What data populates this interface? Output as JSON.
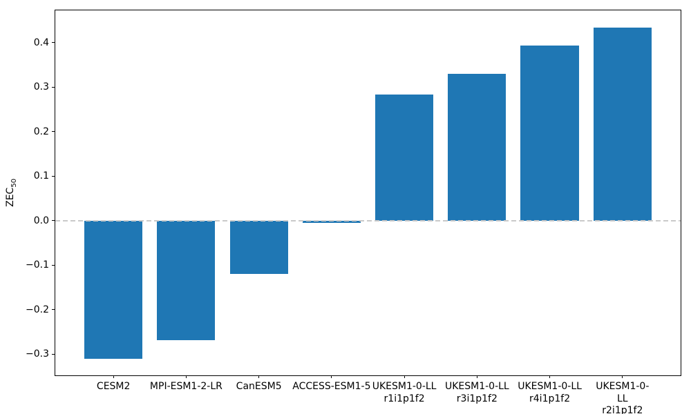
{
  "figure": {
    "background": "#ffffff",
    "ylabel_main": "ZEC",
    "ylabel_sub": "50"
  },
  "chart_data": {
    "type": "bar",
    "title": "",
    "xlabel": "",
    "ylabel": "ZEC_50",
    "bar_color": "#1f77b4",
    "categories": [
      "CESM2",
      "MPI-ESM1-2-LR",
      "CanESM5",
      "ACCESS-ESM1-5",
      "UKESM1-0-LL\nr1i1p1f2",
      "UKESM1-0-LL\nr3i1p1f2",
      "UKESM1-0-LL\nr4i1p1f2",
      "UKESM1-0-LL\nr2i1p1f2"
    ],
    "values": [
      -0.31,
      -0.268,
      -0.119,
      -0.005,
      0.283,
      0.33,
      0.394,
      0.434
    ],
    "yticks": [
      -0.3,
      -0.2,
      -0.1,
      0.0,
      0.1,
      0.2,
      0.3,
      0.4
    ],
    "ytick_labels": [
      "−0.3",
      "−0.2",
      "−0.1",
      "0.0",
      "0.1",
      "0.2",
      "0.3",
      "0.4"
    ],
    "ylim": [
      -0.3475,
      0.4726
    ],
    "xlim": [
      -0.8,
      7.8
    ],
    "bar_width": 0.8,
    "grid": false,
    "legend": null,
    "zero_line": {
      "y": 0,
      "style": "dashed",
      "color": "#c9c9c9"
    }
  }
}
